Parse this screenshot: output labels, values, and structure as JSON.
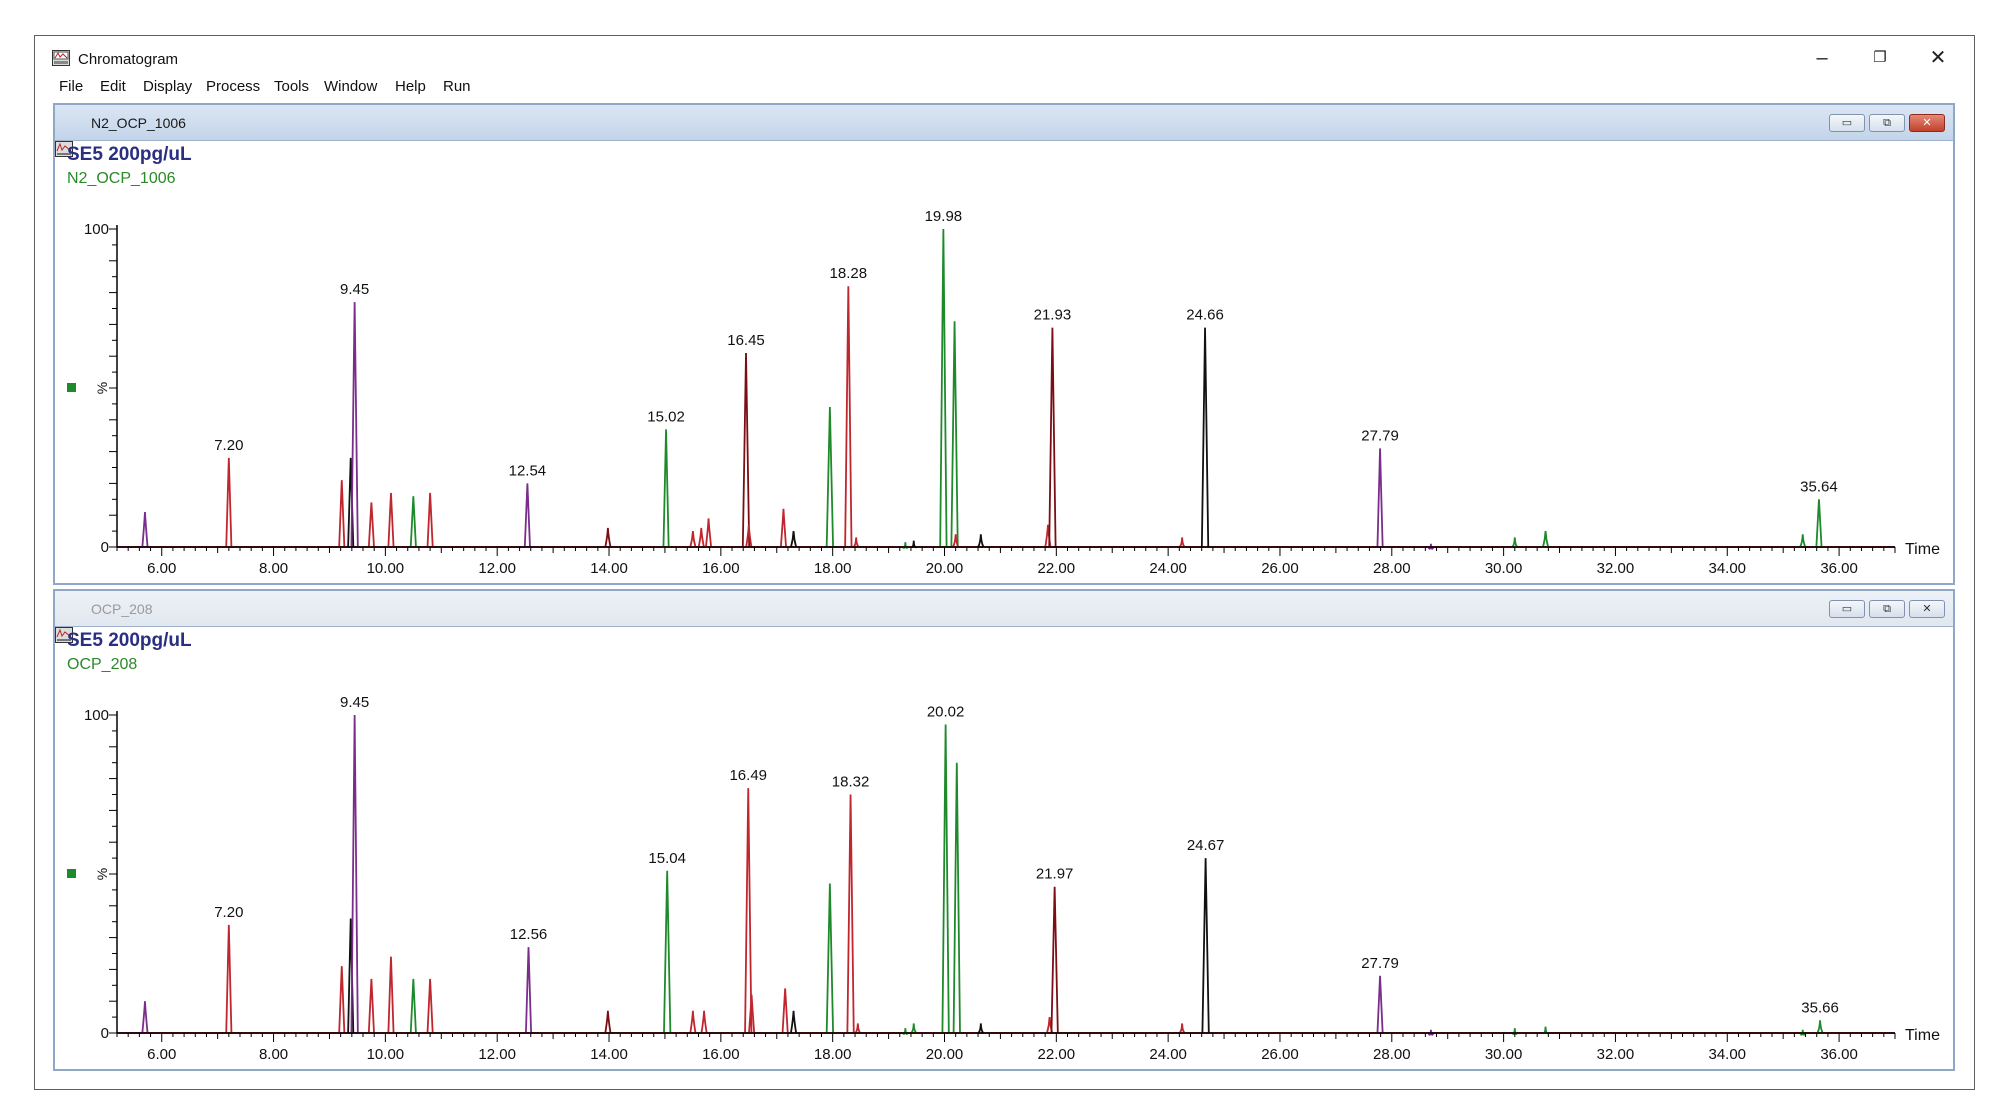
{
  "window": {
    "title": "Chromatogram",
    "minimize": "–",
    "maximize": "❐",
    "close": "✕"
  },
  "menu": [
    "File",
    "Edit",
    "Display",
    "Process",
    "Tools",
    "Window",
    "Help",
    "Run"
  ],
  "colors": {
    "red": "#c0262e",
    "green": "#1f8a2c",
    "black": "#111111",
    "purple": "#7a2d8c",
    "darkred": "#7a0e14",
    "sample_title": "#2a2f82",
    "file_name": "#2a8a2a"
  },
  "panels": [
    {
      "window_name": "N2_OCP_1006",
      "active": true,
      "controls": {
        "min": "▭",
        "max": "⧉",
        "close": "✕"
      },
      "sample_title": "SE5 200pg/uL",
      "file_label": "N2_OCP_1006",
      "chart_data": {
        "type": "line",
        "xlabel": "Time",
        "ylabel": "%",
        "xlim": [
          5.2,
          37.0
        ],
        "ylim": [
          0,
          100
        ],
        "xticks": [
          "6.00",
          "8.00",
          "10.00",
          "12.00",
          "14.00",
          "16.00",
          "18.00",
          "20.00",
          "22.00",
          "24.00",
          "26.00",
          "28.00",
          "30.00",
          "32.00",
          "34.00",
          "36.00"
        ],
        "yticks": [
          "0",
          "100"
        ],
        "peaks": [
          {
            "x": 5.7,
            "y": 11,
            "color": "purple"
          },
          {
            "x": 7.2,
            "y": 28,
            "color": "red",
            "label": "7.20"
          },
          {
            "x": 9.22,
            "y": 21,
            "color": "red"
          },
          {
            "x": 9.38,
            "y": 28,
            "color": "black"
          },
          {
            "x": 9.45,
            "y": 77,
            "color": "purple",
            "label": "9.45"
          },
          {
            "x": 9.75,
            "y": 14,
            "color": "red"
          },
          {
            "x": 10.1,
            "y": 17,
            "color": "red"
          },
          {
            "x": 10.5,
            "y": 16,
            "color": "green"
          },
          {
            "x": 10.8,
            "y": 17,
            "color": "red"
          },
          {
            "x": 12.54,
            "y": 20,
            "color": "purple",
            "label": "12.54"
          },
          {
            "x": 13.98,
            "y": 6,
            "color": "darkred"
          },
          {
            "x": 15.02,
            "y": 37,
            "color": "green",
            "label": "15.02"
          },
          {
            "x": 15.5,
            "y": 5,
            "color": "red"
          },
          {
            "x": 15.65,
            "y": 6,
            "color": "red"
          },
          {
            "x": 15.78,
            "y": 9,
            "color": "red"
          },
          {
            "x": 16.45,
            "y": 61,
            "color": "darkred",
            "label": "16.45"
          },
          {
            "x": 16.5,
            "y": 7,
            "color": "red"
          },
          {
            "x": 17.12,
            "y": 12,
            "color": "red"
          },
          {
            "x": 17.3,
            "y": 5,
            "color": "black"
          },
          {
            "x": 17.95,
            "y": 44,
            "color": "green"
          },
          {
            "x": 18.28,
            "y": 82,
            "color": "red",
            "label": "18.28"
          },
          {
            "x": 18.42,
            "y": 3,
            "color": "red"
          },
          {
            "x": 19.3,
            "y": 1.5,
            "color": "green"
          },
          {
            "x": 19.45,
            "y": 2,
            "color": "black"
          },
          {
            "x": 19.98,
            "y": 100,
            "color": "green",
            "label": "19.98"
          },
          {
            "x": 20.18,
            "y": 71,
            "color": "green"
          },
          {
            "x": 20.2,
            "y": 4,
            "color": "red"
          },
          {
            "x": 20.65,
            "y": 4,
            "color": "black"
          },
          {
            "x": 21.85,
            "y": 7,
            "color": "red"
          },
          {
            "x": 21.93,
            "y": 69,
            "color": "darkred",
            "label": "21.93"
          },
          {
            "x": 24.25,
            "y": 3,
            "color": "red"
          },
          {
            "x": 24.66,
            "y": 69,
            "color": "black",
            "label": "24.66"
          },
          {
            "x": 27.79,
            "y": 31,
            "color": "purple",
            "label": "27.79"
          },
          {
            "x": 28.7,
            "y": 1,
            "color": "purple"
          },
          {
            "x": 30.2,
            "y": 3,
            "color": "green"
          },
          {
            "x": 30.75,
            "y": 5,
            "color": "green"
          },
          {
            "x": 35.35,
            "y": 4,
            "color": "green"
          },
          {
            "x": 35.64,
            "y": 15,
            "color": "green",
            "label": "35.64"
          }
        ]
      }
    },
    {
      "window_name": "OCP_208",
      "active": false,
      "controls": {
        "min": "▭",
        "max": "⧉",
        "close": "✕"
      },
      "sample_title": "SE5 200pg/uL",
      "file_label": "OCP_208",
      "chart_data": {
        "type": "line",
        "xlabel": "Time",
        "ylabel": "%",
        "xlim": [
          5.2,
          37.0
        ],
        "ylim": [
          0,
          100
        ],
        "xticks": [
          "6.00",
          "8.00",
          "10.00",
          "12.00",
          "14.00",
          "16.00",
          "18.00",
          "20.00",
          "22.00",
          "24.00",
          "26.00",
          "28.00",
          "30.00",
          "32.00",
          "34.00",
          "36.00"
        ],
        "yticks": [
          "0",
          "100"
        ],
        "peaks": [
          {
            "x": 5.7,
            "y": 10,
            "color": "purple"
          },
          {
            "x": 7.2,
            "y": 34,
            "color": "red",
            "label": "7.20"
          },
          {
            "x": 9.22,
            "y": 21,
            "color": "red"
          },
          {
            "x": 9.38,
            "y": 36,
            "color": "black"
          },
          {
            "x": 9.45,
            "y": 100,
            "color": "purple",
            "label": "9.45"
          },
          {
            "x": 9.75,
            "y": 17,
            "color": "red"
          },
          {
            "x": 10.1,
            "y": 24,
            "color": "red"
          },
          {
            "x": 10.5,
            "y": 17,
            "color": "green"
          },
          {
            "x": 10.8,
            "y": 17,
            "color": "red"
          },
          {
            "x": 12.56,
            "y": 27,
            "color": "purple",
            "label": "12.56"
          },
          {
            "x": 13.98,
            "y": 7,
            "color": "darkred"
          },
          {
            "x": 15.04,
            "y": 51,
            "color": "green",
            "label": "15.04"
          },
          {
            "x": 15.5,
            "y": 7,
            "color": "red"
          },
          {
            "x": 15.7,
            "y": 7,
            "color": "red"
          },
          {
            "x": 16.49,
            "y": 77,
            "color": "red",
            "label": "16.49"
          },
          {
            "x": 16.55,
            "y": 12,
            "color": "red"
          },
          {
            "x": 17.15,
            "y": 14,
            "color": "red"
          },
          {
            "x": 17.3,
            "y": 7,
            "color": "black"
          },
          {
            "x": 17.95,
            "y": 47,
            "color": "green"
          },
          {
            "x": 18.32,
            "y": 75,
            "color": "red",
            "label": "18.32"
          },
          {
            "x": 18.45,
            "y": 3,
            "color": "red"
          },
          {
            "x": 19.3,
            "y": 1.5,
            "color": "green"
          },
          {
            "x": 19.45,
            "y": 3,
            "color": "green"
          },
          {
            "x": 20.02,
            "y": 97,
            "color": "green",
            "label": "20.02"
          },
          {
            "x": 20.22,
            "y": 85,
            "color": "green"
          },
          {
            "x": 20.65,
            "y": 3,
            "color": "black"
          },
          {
            "x": 21.88,
            "y": 5,
            "color": "red"
          },
          {
            "x": 21.97,
            "y": 46,
            "color": "darkred",
            "label": "21.97"
          },
          {
            "x": 24.25,
            "y": 3,
            "color": "red"
          },
          {
            "x": 24.67,
            "y": 55,
            "color": "black",
            "label": "24.67"
          },
          {
            "x": 27.79,
            "y": 18,
            "color": "purple",
            "label": "27.79"
          },
          {
            "x": 28.7,
            "y": 1,
            "color": "purple"
          },
          {
            "x": 30.2,
            "y": 1.5,
            "color": "green"
          },
          {
            "x": 30.75,
            "y": 2,
            "color": "green"
          },
          {
            "x": 35.35,
            "y": 1,
            "color": "green"
          },
          {
            "x": 35.66,
            "y": 4,
            "color": "green",
            "label": "35.66"
          }
        ]
      }
    }
  ]
}
